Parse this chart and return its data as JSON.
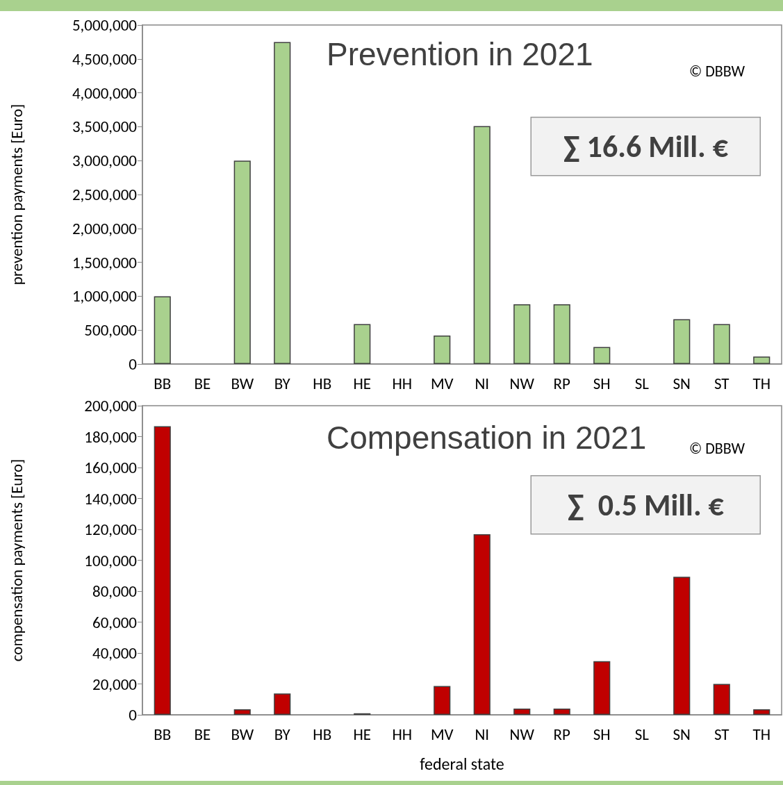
{
  "chart_data": [
    {
      "type": "bar",
      "title": "Prevention in 2021",
      "ylabel": "prevention payments [Euro]",
      "categories": [
        "BB",
        "BE",
        "BW",
        "BY",
        "HB",
        "HE",
        "HH",
        "MV",
        "NI",
        "NW",
        "RP",
        "SH",
        "SL",
        "SN",
        "ST",
        "TH"
      ],
      "values": [
        1000000,
        null,
        3000000,
        4750000,
        null,
        590000,
        null,
        420000,
        3510000,
        880000,
        880000,
        250000,
        null,
        660000,
        590000,
        110000
      ],
      "color": "#a9d18e",
      "ylim": [
        0,
        5000000
      ],
      "yticks": [
        0,
        {
          "value": 500000,
          "label": "500,000"
        },
        {
          "value": 1000000,
          "label": "1,000,000"
        },
        {
          "value": 1500000,
          "label": "1,500,000"
        },
        {
          "value": 2000000,
          "label": "2,000,000"
        },
        {
          "value": 2500000,
          "label": "2,500,000"
        },
        {
          "value": 3000000,
          "label": "3,000,000"
        },
        {
          "value": 3500000,
          "label": "3,500,000"
        },
        {
          "value": 4000000,
          "label": "4,000,000"
        },
        {
          "value": 4500000,
          "label": "4,500,000"
        },
        {
          "value": 5000000,
          "label": "5,000,000"
        }
      ],
      "grid": false,
      "annotations": [
        "© DBBW",
        "∑ 16.6 Mill. €"
      ]
    },
    {
      "type": "bar",
      "title": "Compensation in 2021",
      "ylabel": "compensation payments [Euro]",
      "xlabel": "federal state",
      "categories": [
        "BB",
        "BE",
        "BW",
        "BY",
        "HB",
        "HE",
        "HH",
        "MV",
        "NI",
        "NW",
        "RP",
        "SH",
        "SL",
        "SN",
        "ST",
        "TH"
      ],
      "values": [
        186700,
        null,
        3600,
        13800,
        null,
        1000,
        null,
        18700,
        116900,
        4000,
        4000,
        34700,
        null,
        89300,
        20000,
        3600
      ],
      "color": "#c00000",
      "ylim": [
        0,
        200000
      ],
      "yticks": [
        0,
        {
          "value": 20000,
          "label": "20,000"
        },
        {
          "value": 40000,
          "label": "40,000"
        },
        {
          "value": 60000,
          "label": "60,000"
        },
        {
          "value": 80000,
          "label": "80,000"
        },
        {
          "value": 100000,
          "label": "100,000"
        },
        {
          "value": 120000,
          "label": "120,000"
        },
        {
          "value": 140000,
          "label": "140,000"
        },
        {
          "value": 160000,
          "label": "160,000"
        },
        {
          "value": 180000,
          "label": "180,000"
        },
        {
          "value": 200000,
          "label": "200,000"
        }
      ],
      "grid": false,
      "annotations": [
        "© DBBW",
        "∑  0.5 Mill. €"
      ]
    }
  ]
}
